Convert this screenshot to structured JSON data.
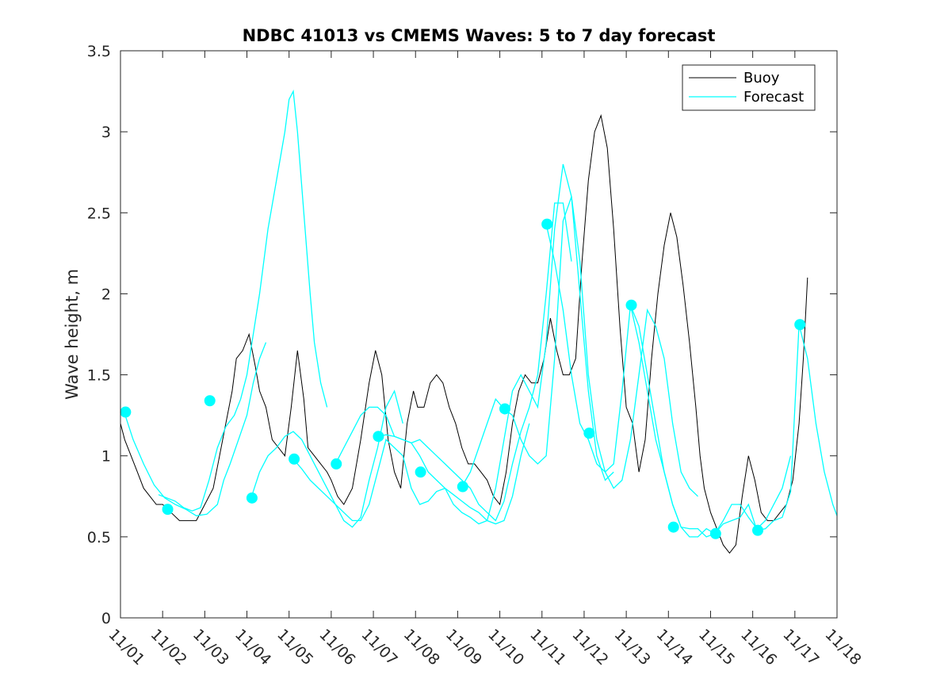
{
  "chart_data": {
    "type": "line",
    "title": "NDBC 41013 vs CMEMS Waves: 5 to 7 day forecast",
    "xlabel": "",
    "ylabel": "Wave height, m",
    "xlim": [
      0,
      17
    ],
    "ylim": [
      0,
      3.5
    ],
    "x_tick_labels": [
      "11/01",
      "11/02",
      "11/03",
      "11/04",
      "11/05",
      "11/06",
      "11/07",
      "11/08",
      "11/09",
      "11/10",
      "11/11",
      "11/12",
      "11/13",
      "11/14",
      "11/15",
      "11/16",
      "11/17",
      "11/18"
    ],
    "y_ticks": [
      0,
      0.5,
      1,
      1.5,
      2,
      2.5,
      3,
      3.5
    ],
    "y_tick_labels": [
      "0",
      "0.5",
      "1",
      "1.5",
      "2",
      "2.5",
      "3",
      "3.5"
    ],
    "legend": {
      "position": "top-right",
      "entries": [
        "Buoy",
        "Forecast"
      ]
    },
    "colors": {
      "buoy": "#000000",
      "forecast": "#00ffff",
      "axis": "#262626"
    },
    "series": [
      {
        "name": "Buoy",
        "x": [
          0,
          0.1,
          0.25,
          0.4,
          0.55,
          0.7,
          0.85,
          1.0,
          1.2,
          1.4,
          1.6,
          1.8,
          2.0,
          2.2,
          2.35,
          2.5,
          2.65,
          2.75,
          2.9,
          3.05,
          3.2,
          3.3,
          3.45,
          3.6,
          3.75,
          3.9,
          4.05,
          4.2,
          4.35,
          4.45,
          4.6,
          4.75,
          4.9,
          5.0,
          5.15,
          5.3,
          5.5,
          5.7,
          5.9,
          6.05,
          6.2,
          6.35,
          6.5,
          6.65,
          6.8,
          6.95,
          7.05,
          7.2,
          7.35,
          7.5,
          7.65,
          7.8,
          7.95,
          8.1,
          8.25,
          8.4,
          8.55,
          8.7,
          8.85,
          9.0,
          9.15,
          9.3,
          9.45,
          9.6,
          9.75,
          9.9,
          10.05,
          10.2,
          10.35,
          10.5,
          10.65,
          10.8,
          10.95,
          11.1,
          11.25,
          11.4,
          11.55,
          11.7,
          11.85,
          12.0,
          12.15,
          12.3,
          12.45,
          12.6,
          12.75,
          12.9,
          13.05,
          13.2,
          13.35,
          13.5,
          13.65,
          13.75,
          13.85,
          14.0,
          14.15,
          14.3,
          14.45,
          14.6,
          14.75,
          14.9,
          15.05,
          15.2,
          15.35,
          15.5,
          15.65,
          15.8,
          15.95,
          16.1,
          16.2,
          16.3
        ],
        "y": [
          1.2,
          1.1,
          1.0,
          0.9,
          0.8,
          0.75,
          0.7,
          0.7,
          0.65,
          0.6,
          0.6,
          0.6,
          0.7,
          0.8,
          1.0,
          1.2,
          1.4,
          1.6,
          1.65,
          1.75,
          1.55,
          1.4,
          1.3,
          1.1,
          1.05,
          1.0,
          1.3,
          1.65,
          1.35,
          1.05,
          1.0,
          0.95,
          0.9,
          0.85,
          0.75,
          0.7,
          0.8,
          1.1,
          1.45,
          1.65,
          1.5,
          1.1,
          0.9,
          0.8,
          1.2,
          1.4,
          1.3,
          1.3,
          1.45,
          1.5,
          1.45,
          1.3,
          1.2,
          1.05,
          0.95,
          0.95,
          0.9,
          0.85,
          0.75,
          0.7,
          0.9,
          1.2,
          1.4,
          1.5,
          1.45,
          1.45,
          1.6,
          1.85,
          1.65,
          1.5,
          1.5,
          1.6,
          2.2,
          2.7,
          3.0,
          3.1,
          2.9,
          2.4,
          1.8,
          1.3,
          1.2,
          0.9,
          1.1,
          1.6,
          2.0,
          2.3,
          2.5,
          2.35,
          2.05,
          1.7,
          1.3,
          1.0,
          0.8,
          0.65,
          0.55,
          0.45,
          0.4,
          0.45,
          0.75,
          1.0,
          0.85,
          0.65,
          0.6,
          0.6,
          0.65,
          0.7,
          0.85,
          1.2,
          1.6,
          2.1
        ]
      },
      {
        "name": "Forecast",
        "segments": [
          {
            "x": [
              0.1,
              0.3,
              0.55,
              0.8,
              1.05,
              1.3,
              1.55,
              1.8,
              2.05,
              2.3,
              2.45,
              2.6,
              2.8,
              3.0,
              3.15,
              3.3,
              3.45
            ],
            "y": [
              1.26,
              1.1,
              0.95,
              0.82,
              0.74,
              0.7,
              0.67,
              0.63,
              0.64,
              0.7,
              0.85,
              0.95,
              1.1,
              1.25,
              1.45,
              1.6,
              1.7
            ]
          },
          {
            "x": [
              0.9,
              1.1,
              1.3,
              1.5,
              1.7,
              1.9,
              2.1,
              2.3,
              2.5,
              2.7,
              2.85,
              3.0,
              3.15,
              3.3,
              3.5,
              3.7,
              3.9,
              4.0,
              4.1,
              4.2,
              4.35,
              4.5,
              4.6,
              4.75,
              4.9
            ],
            "y": [
              0.76,
              0.74,
              0.72,
              0.68,
              0.66,
              0.68,
              0.85,
              1.05,
              1.18,
              1.25,
              1.35,
              1.5,
              1.75,
              2.0,
              2.4,
              2.7,
              3.0,
              3.2,
              3.25,
              3.0,
              2.5,
              2.0,
              1.7,
              1.45,
              1.3
            ]
          },
          {
            "x": [
              3.1,
              3.3,
              3.5,
              3.7,
              3.9,
              4.1,
              4.3,
              4.5,
              4.7,
              4.9,
              5.1,
              5.3,
              5.5,
              5.7,
              5.9,
              6.1,
              6.3,
              6.5,
              6.7
            ],
            "y": [
              0.74,
              0.9,
              1.0,
              1.05,
              1.12,
              1.15,
              1.1,
              1.0,
              0.9,
              0.8,
              0.7,
              0.6,
              0.56,
              0.62,
              0.85,
              1.05,
              1.3,
              1.4,
              1.2
            ]
          },
          {
            "x": [
              4.1,
              4.3,
              4.5,
              4.7,
              4.9,
              5.1,
              5.3,
              5.5,
              5.7,
              5.9,
              6.1,
              6.3,
              6.5,
              6.7,
              6.9,
              7.1,
              7.3,
              7.5,
              7.7,
              7.9,
              8.1,
              8.3,
              8.5,
              8.7,
              8.9,
              9.1,
              9.3,
              9.5,
              9.7
            ],
            "y": [
              0.98,
              0.92,
              0.85,
              0.8,
              0.75,
              0.7,
              0.65,
              0.6,
              0.6,
              0.7,
              0.9,
              1.1,
              1.05,
              1.0,
              0.8,
              0.7,
              0.72,
              0.78,
              0.8,
              0.76,
              0.72,
              0.68,
              0.65,
              0.6,
              0.58,
              0.6,
              0.75,
              1.0,
              1.2
            ]
          },
          {
            "x": [
              5.1,
              5.3,
              5.5,
              5.7,
              5.9,
              6.1,
              6.3,
              6.5,
              6.7,
              6.9,
              7.1,
              7.3,
              7.5,
              7.7,
              7.9,
              8.1,
              8.3,
              8.5,
              8.7,
              8.9,
              9.1,
              9.3,
              9.5,
              9.7,
              9.9,
              10.1,
              10.3,
              10.5,
              10.7
            ],
            "y": [
              0.95,
              1.05,
              1.15,
              1.25,
              1.3,
              1.3,
              1.25,
              1.12,
              1.1,
              1.08,
              1.1,
              1.05,
              1.0,
              0.95,
              0.9,
              0.85,
              0.8,
              0.7,
              0.65,
              0.6,
              0.72,
              0.95,
              1.15,
              1.3,
              1.5,
              2.0,
              2.56,
              2.56,
              2.2
            ]
          },
          {
            "x": [
              6.1,
              6.3,
              6.5,
              6.7,
              6.9,
              7.1,
              7.3,
              7.5,
              7.7,
              7.9,
              8.1,
              8.3,
              8.5,
              8.7,
              8.9,
              9.1,
              9.3,
              9.5,
              9.7,
              9.9,
              10.1,
              10.3,
              10.5,
              10.7,
              10.9,
              11.1,
              11.3,
              11.5,
              11.7
            ],
            "y": [
              1.12,
              1.13,
              1.12,
              1.1,
              1.08,
              1.0,
              0.9,
              0.85,
              0.8,
              0.7,
              0.65,
              0.62,
              0.58,
              0.6,
              0.8,
              1.1,
              1.4,
              1.5,
              1.4,
              1.3,
              1.7,
              2.4,
              2.8,
              2.6,
              2.0,
              1.4,
              1.0,
              0.85,
              0.9
            ]
          },
          {
            "x": [
              8.1,
              8.3,
              8.5,
              8.7,
              8.9,
              9.1,
              9.3,
              9.5,
              9.7,
              9.9,
              10.1,
              10.3,
              10.5,
              10.7,
              10.9,
              11.1,
              11.3,
              11.5,
              11.7,
              11.9,
              12.1,
              12.3,
              12.5,
              12.7,
              12.9,
              13.1,
              13.3,
              13.5,
              13.7
            ],
            "y": [
              0.81,
              0.9,
              1.05,
              1.2,
              1.35,
              1.29,
              1.25,
              1.1,
              1.0,
              0.95,
              1.0,
              1.6,
              2.45,
              2.6,
              2.2,
              1.5,
              1.1,
              0.9,
              0.8,
              0.85,
              1.1,
              1.5,
              1.9,
              1.8,
              1.6,
              1.2,
              0.9,
              0.8,
              0.75
            ]
          },
          {
            "x": [
              10.1,
              10.3,
              10.5,
              10.7,
              10.9,
              11.1,
              11.3,
              11.5,
              11.7,
              11.9,
              12.1,
              12.3,
              12.5,
              12.7,
              12.9,
              13.1,
              13.3,
              13.5,
              13.7,
              13.9,
              14.1,
              14.3,
              14.5,
              14.7,
              14.9,
              15.1,
              15.3,
              15.5,
              15.7,
              15.9
            ],
            "y": [
              2.43,
              2.2,
              1.9,
              1.5,
              1.2,
              1.1,
              0.95,
              0.9,
              0.95,
              1.4,
              1.93,
              1.8,
              1.5,
              1.2,
              0.9,
              0.7,
              0.56,
              0.5,
              0.5,
              0.55,
              0.52,
              0.6,
              0.7,
              0.7,
              0.62,
              0.55,
              0.6,
              0.7,
              0.8,
              1.0
            ]
          },
          {
            "x": [
              12.1,
              12.3,
              12.5,
              12.7,
              12.9,
              13.1,
              13.3,
              13.5,
              13.7,
              13.9,
              14.1,
              14.3,
              14.5,
              14.7,
              14.9,
              15.1,
              15.3,
              15.5,
              15.7,
              15.9,
              16.1,
              16.3,
              16.5,
              16.7,
              16.9,
              17.0
            ],
            "y": [
              1.93,
              1.7,
              1.4,
              1.1,
              0.9,
              0.7,
              0.56,
              0.55,
              0.55,
              0.5,
              0.52,
              0.58,
              0.6,
              0.62,
              0.7,
              0.54,
              0.55,
              0.6,
              0.62,
              0.78,
              1.81,
              1.6,
              1.2,
              0.9,
              0.7,
              0.63
            ]
          }
        ]
      },
      {
        "name": "Forecast markers",
        "x": [
          0.12,
          1.12,
          2.12,
          3.12,
          4.12,
          5.12,
          6.12,
          7.12,
          8.12,
          9.12,
          10.12,
          11.12,
          12.12,
          13.12,
          14.12,
          15.12,
          16.12
        ],
        "y": [
          1.27,
          0.67,
          1.34,
          0.74,
          0.98,
          0.95,
          1.12,
          0.9,
          0.81,
          1.29,
          2.43,
          1.14,
          1.93,
          0.56,
          0.52,
          0.54,
          1.81
        ]
      }
    ]
  }
}
